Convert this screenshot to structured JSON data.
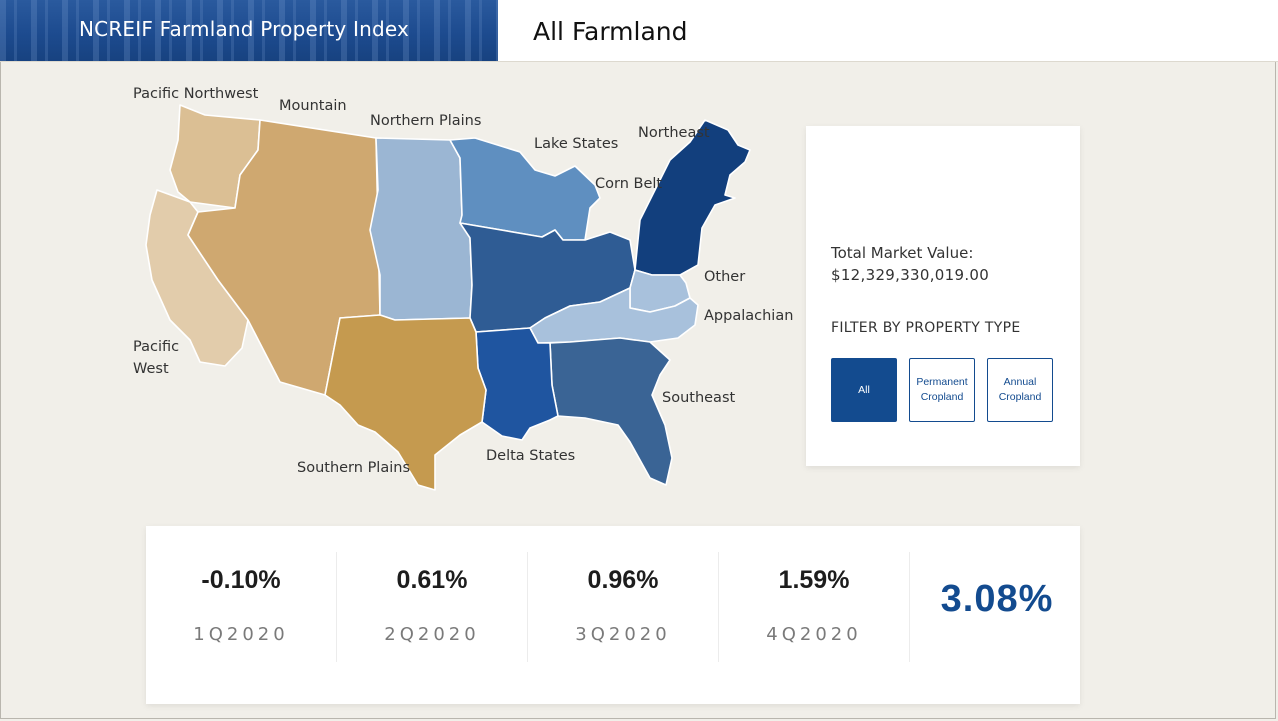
{
  "header": {
    "brand_title": "NCREIF Farmland Property Index",
    "page_title": "All Farmland"
  },
  "map": {
    "regions": [
      {
        "name": "Pacific Northwest",
        "label": "Pacific Northwest",
        "color": "#dbbf94"
      },
      {
        "name": "Mountain",
        "label": "Mountain",
        "color": "#cfa870"
      },
      {
        "name": "Northern Plains",
        "label": "Northern Plains",
        "color": "#9bb6d3"
      },
      {
        "name": "Lake States",
        "label": "Lake States",
        "color": "#5f8fc0"
      },
      {
        "name": "Corn Belt",
        "label": "Corn Belt",
        "color": "#2f5c94"
      },
      {
        "name": "Northeast",
        "label": "Northeast",
        "color": "#123f7d"
      },
      {
        "name": "Other",
        "label": "Other",
        "color": "#a8c1dc"
      },
      {
        "name": "Appalachian",
        "label": "Appalachian",
        "color": "#a8c1dc"
      },
      {
        "name": "Southeast",
        "label": "Southeast",
        "color": "#3a6495"
      },
      {
        "name": "Delta States",
        "label": "Delta States",
        "color": "#1f55a0"
      },
      {
        "name": "Southern Plains",
        "label": "Southern Plains",
        "color": "#c59a4f"
      },
      {
        "name": "Pacific West",
        "label": "Pacific\nWest",
        "color": "#e2ccab"
      }
    ]
  },
  "summary": {
    "total_market_value_label": "Total Market Value:",
    "total_market_value": "$12,329,330,019.00",
    "filter_title": "FILTER BY PROPERTY TYPE",
    "filters": [
      {
        "label": "All",
        "active": true
      },
      {
        "label": "Permanent Cropland",
        "active": false
      },
      {
        "label": "Annual Cropland",
        "active": false
      }
    ]
  },
  "returns": {
    "quarters": [
      {
        "value": "-0.10%",
        "period": "1Q2020"
      },
      {
        "value": "0.61%",
        "period": "2Q2020"
      },
      {
        "value": "0.96%",
        "period": "3Q2020"
      },
      {
        "value": "1.59%",
        "period": "4Q2020"
      }
    ],
    "total": "3.08%"
  },
  "colors": {
    "accent": "#134b8f",
    "background": "#f1efe9"
  }
}
